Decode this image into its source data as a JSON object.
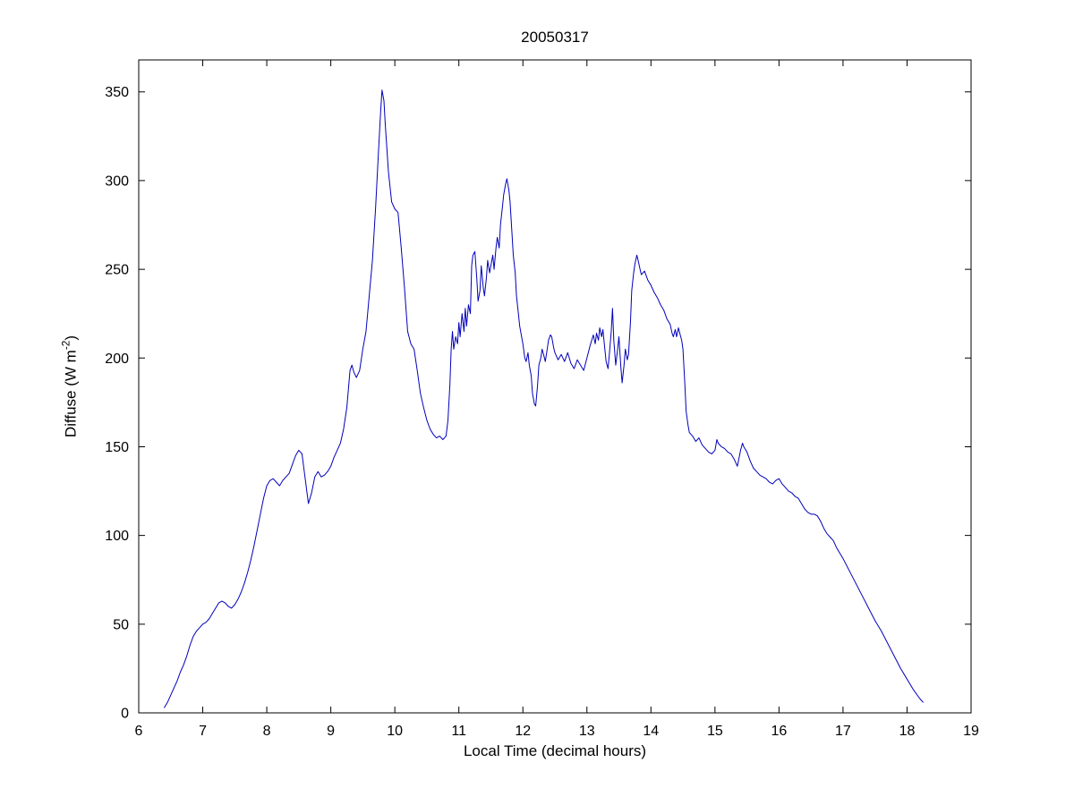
{
  "chart_data": {
    "type": "line",
    "title": "20050317",
    "xlabel": "Local Time (decimal hours)",
    "ylabel": "Diffuse (W m-2)",
    "ylabel_parts": {
      "prefix": "Diffuse (W m",
      "sup": "-2",
      "suffix": ")"
    },
    "legend": null,
    "grid": false,
    "line_color": "#0000bb",
    "axis_color": "#000000",
    "background": "#ffffff",
    "xlim": [
      6,
      19
    ],
    "ylim": [
      0,
      368
    ],
    "xticks": [
      6,
      7,
      8,
      9,
      10,
      11,
      12,
      13,
      14,
      15,
      16,
      17,
      18,
      19
    ],
    "yticks": [
      0,
      50,
      100,
      150,
      200,
      250,
      300,
      350
    ],
    "series": [
      {
        "name": "diffuse-irradiance",
        "points": [
          [
            6.4,
            3
          ],
          [
            6.45,
            6
          ],
          [
            6.5,
            10
          ],
          [
            6.55,
            14
          ],
          [
            6.6,
            18
          ],
          [
            6.65,
            23
          ],
          [
            6.7,
            27
          ],
          [
            6.75,
            32
          ],
          [
            6.8,
            38
          ],
          [
            6.85,
            43
          ],
          [
            6.9,
            46
          ],
          [
            6.95,
            48
          ],
          [
            7.0,
            50
          ],
          [
            7.05,
            51
          ],
          [
            7.1,
            53
          ],
          [
            7.15,
            56
          ],
          [
            7.2,
            59
          ],
          [
            7.25,
            62
          ],
          [
            7.3,
            63
          ],
          [
            7.35,
            62
          ],
          [
            7.4,
            60
          ],
          [
            7.45,
            59
          ],
          [
            7.5,
            61
          ],
          [
            7.55,
            64
          ],
          [
            7.6,
            68
          ],
          [
            7.65,
            73
          ],
          [
            7.7,
            79
          ],
          [
            7.75,
            86
          ],
          [
            7.8,
            94
          ],
          [
            7.85,
            103
          ],
          [
            7.9,
            112
          ],
          [
            7.95,
            121
          ],
          [
            8.0,
            128
          ],
          [
            8.05,
            131
          ],
          [
            8.1,
            132
          ],
          [
            8.15,
            130
          ],
          [
            8.2,
            128
          ],
          [
            8.25,
            131
          ],
          [
            8.3,
            133
          ],
          [
            8.35,
            135
          ],
          [
            8.4,
            140
          ],
          [
            8.45,
            145
          ],
          [
            8.5,
            148
          ],
          [
            8.55,
            146
          ],
          [
            8.6,
            132
          ],
          [
            8.65,
            118
          ],
          [
            8.7,
            124
          ],
          [
            8.75,
            133
          ],
          [
            8.8,
            136
          ],
          [
            8.85,
            133
          ],
          [
            8.9,
            134
          ],
          [
            8.95,
            136
          ],
          [
            9.0,
            139
          ],
          [
            9.05,
            144
          ],
          [
            9.1,
            148
          ],
          [
            9.15,
            152
          ],
          [
            9.2,
            160
          ],
          [
            9.25,
            172
          ],
          [
            9.3,
            193
          ],
          [
            9.33,
            196
          ],
          [
            9.36,
            192
          ],
          [
            9.4,
            189
          ],
          [
            9.45,
            193
          ],
          [
            9.5,
            205
          ],
          [
            9.55,
            215
          ],
          [
            9.6,
            235
          ],
          [
            9.65,
            255
          ],
          [
            9.7,
            285
          ],
          [
            9.75,
            320
          ],
          [
            9.78,
            340
          ],
          [
            9.8,
            351
          ],
          [
            9.83,
            345
          ],
          [
            9.85,
            332
          ],
          [
            9.9,
            305
          ],
          [
            9.95,
            288
          ],
          [
            10.0,
            284
          ],
          [
            10.05,
            282
          ],
          [
            10.1,
            262
          ],
          [
            10.15,
            240
          ],
          [
            10.2,
            215
          ],
          [
            10.25,
            208
          ],
          [
            10.3,
            205
          ],
          [
            10.35,
            193
          ],
          [
            10.4,
            180
          ],
          [
            10.45,
            172
          ],
          [
            10.5,
            165
          ],
          [
            10.55,
            160
          ],
          [
            10.6,
            157
          ],
          [
            10.65,
            155
          ],
          [
            10.7,
            156
          ],
          [
            10.75,
            154
          ],
          [
            10.8,
            156
          ],
          [
            10.83,
            165
          ],
          [
            10.86,
            185
          ],
          [
            10.88,
            205
          ],
          [
            10.9,
            215
          ],
          [
            10.92,
            205
          ],
          [
            10.95,
            212
          ],
          [
            10.98,
            208
          ],
          [
            11.0,
            220
          ],
          [
            11.02,
            212
          ],
          [
            11.05,
            225
          ],
          [
            11.08,
            215
          ],
          [
            11.1,
            228
          ],
          [
            11.12,
            218
          ],
          [
            11.15,
            230
          ],
          [
            11.18,
            225
          ],
          [
            11.2,
            252
          ],
          [
            11.22,
            258
          ],
          [
            11.25,
            260
          ],
          [
            11.28,
            245
          ],
          [
            11.3,
            232
          ],
          [
            11.33,
            238
          ],
          [
            11.35,
            252
          ],
          [
            11.38,
            240
          ],
          [
            11.4,
            235
          ],
          [
            11.43,
            245
          ],
          [
            11.45,
            255
          ],
          [
            11.48,
            248
          ],
          [
            11.5,
            252
          ],
          [
            11.53,
            258
          ],
          [
            11.55,
            250
          ],
          [
            11.58,
            262
          ],
          [
            11.6,
            268
          ],
          [
            11.63,
            262
          ],
          [
            11.65,
            275
          ],
          [
            11.68,
            285
          ],
          [
            11.7,
            292
          ],
          [
            11.73,
            298
          ],
          [
            11.75,
            301
          ],
          [
            11.78,
            295
          ],
          [
            11.8,
            288
          ],
          [
            11.83,
            270
          ],
          [
            11.85,
            258
          ],
          [
            11.88,
            248
          ],
          [
            11.9,
            235
          ],
          [
            11.93,
            225
          ],
          [
            11.95,
            218
          ],
          [
            12.0,
            208
          ],
          [
            12.03,
            200
          ],
          [
            12.05,
            198
          ],
          [
            12.08,
            203
          ],
          [
            12.1,
            196
          ],
          [
            12.13,
            190
          ],
          [
            12.15,
            180
          ],
          [
            12.18,
            174
          ],
          [
            12.2,
            173
          ],
          [
            12.23,
            185
          ],
          [
            12.25,
            196
          ],
          [
            12.28,
            200
          ],
          [
            12.3,
            205
          ],
          [
            12.33,
            201
          ],
          [
            12.35,
            198
          ],
          [
            12.38,
            205
          ],
          [
            12.4,
            210
          ],
          [
            12.43,
            213
          ],
          [
            12.45,
            212
          ],
          [
            12.48,
            206
          ],
          [
            12.5,
            203
          ],
          [
            12.55,
            199
          ],
          [
            12.6,
            202
          ],
          [
            12.65,
            198
          ],
          [
            12.7,
            203
          ],
          [
            12.75,
            197
          ],
          [
            12.8,
            194
          ],
          [
            12.85,
            199
          ],
          [
            12.9,
            196
          ],
          [
            12.95,
            193
          ],
          [
            13.0,
            200
          ],
          [
            13.05,
            207
          ],
          [
            13.1,
            213
          ],
          [
            13.13,
            208
          ],
          [
            13.15,
            214
          ],
          [
            13.18,
            210
          ],
          [
            13.2,
            217
          ],
          [
            13.23,
            212
          ],
          [
            13.25,
            216
          ],
          [
            13.28,
            205
          ],
          [
            13.3,
            198
          ],
          [
            13.33,
            194
          ],
          [
            13.35,
            202
          ],
          [
            13.38,
            215
          ],
          [
            13.4,
            228
          ],
          [
            13.42,
            210
          ],
          [
            13.45,
            196
          ],
          [
            13.48,
            205
          ],
          [
            13.5,
            212
          ],
          [
            13.53,
            195
          ],
          [
            13.55,
            186
          ],
          [
            13.58,
            196
          ],
          [
            13.6,
            205
          ],
          [
            13.63,
            199
          ],
          [
            13.65,
            202
          ],
          [
            13.68,
            220
          ],
          [
            13.7,
            238
          ],
          [
            13.73,
            248
          ],
          [
            13.75,
            253
          ],
          [
            13.78,
            258
          ],
          [
            13.8,
            255
          ],
          [
            13.83,
            250
          ],
          [
            13.85,
            247
          ],
          [
            13.9,
            249
          ],
          [
            13.95,
            244
          ],
          [
            14.0,
            241
          ],
          [
            14.05,
            237
          ],
          [
            14.1,
            234
          ],
          [
            14.15,
            230
          ],
          [
            14.2,
            227
          ],
          [
            14.25,
            222
          ],
          [
            14.3,
            219
          ],
          [
            14.33,
            214
          ],
          [
            14.35,
            212
          ],
          [
            14.38,
            216
          ],
          [
            14.4,
            212
          ],
          [
            14.43,
            217
          ],
          [
            14.45,
            214
          ],
          [
            14.48,
            210
          ],
          [
            14.5,
            205
          ],
          [
            14.53,
            185
          ],
          [
            14.55,
            170
          ],
          [
            14.58,
            162
          ],
          [
            14.6,
            158
          ],
          [
            14.65,
            156
          ],
          [
            14.7,
            153
          ],
          [
            14.75,
            155
          ],
          [
            14.8,
            151
          ],
          [
            14.85,
            149
          ],
          [
            14.9,
            147
          ],
          [
            14.95,
            146
          ],
          [
            15.0,
            148
          ],
          [
            15.03,
            154
          ],
          [
            15.05,
            152
          ],
          [
            15.1,
            150
          ],
          [
            15.15,
            149
          ],
          [
            15.2,
            147
          ],
          [
            15.25,
            146
          ],
          [
            15.3,
            143
          ],
          [
            15.35,
            139
          ],
          [
            15.4,
            148
          ],
          [
            15.43,
            152
          ],
          [
            15.45,
            150
          ],
          [
            15.5,
            147
          ],
          [
            15.55,
            142
          ],
          [
            15.6,
            138
          ],
          [
            15.65,
            136
          ],
          [
            15.7,
            134
          ],
          [
            15.75,
            133
          ],
          [
            15.8,
            132
          ],
          [
            15.85,
            130
          ],
          [
            15.9,
            129
          ],
          [
            15.95,
            131
          ],
          [
            16.0,
            132
          ],
          [
            16.05,
            129
          ],
          [
            16.1,
            127
          ],
          [
            16.15,
            125
          ],
          [
            16.2,
            124
          ],
          [
            16.25,
            122
          ],
          [
            16.3,
            121
          ],
          [
            16.35,
            118
          ],
          [
            16.4,
            115
          ],
          [
            16.45,
            113
          ],
          [
            16.5,
            112
          ],
          [
            16.55,
            112
          ],
          [
            16.6,
            111
          ],
          [
            16.65,
            108
          ],
          [
            16.7,
            104
          ],
          [
            16.75,
            101
          ],
          [
            16.8,
            99
          ],
          [
            16.85,
            97
          ],
          [
            16.9,
            93
          ],
          [
            16.95,
            90
          ],
          [
            17.0,
            87
          ],
          [
            17.1,
            80
          ],
          [
            17.2,
            73
          ],
          [
            17.3,
            66
          ],
          [
            17.4,
            59
          ],
          [
            17.5,
            52
          ],
          [
            17.6,
            46
          ],
          [
            17.7,
            39
          ],
          [
            17.8,
            32
          ],
          [
            17.9,
            25
          ],
          [
            18.0,
            19
          ],
          [
            18.1,
            13
          ],
          [
            18.2,
            8
          ],
          [
            18.25,
            6
          ]
        ]
      }
    ]
  }
}
